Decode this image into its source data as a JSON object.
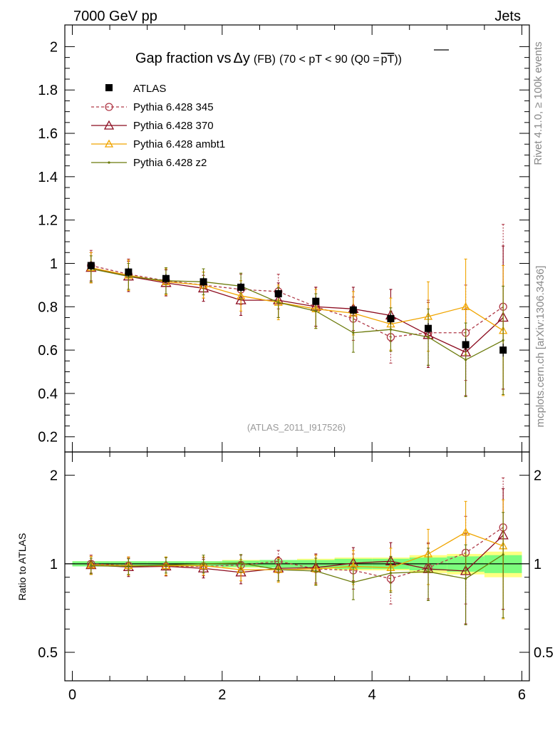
{
  "header": {
    "left": "7000 GeV pp",
    "right": "Jets"
  },
  "side_labels": {
    "rivet": "Rivet 4.1.0, ≥ 100k events",
    "mcplots": "mcplots.cern.ch [arXiv:1306.3436]"
  },
  "colors": {
    "atlas": "#000000",
    "p345": "#b03a48",
    "p370": "#8b0a1e",
    "ambt1": "#f0a500",
    "z2": "#6b7a0a",
    "band_inner": "#7cfc7c",
    "band_outer": "#ffff80"
  },
  "chart_data": [
    {
      "type": "scatter",
      "panel": "main",
      "title_parts": {
        "t1": "Gap fraction vs",
        "t2": "Δy",
        "t3": "(FB)",
        "t4": "(70 < pT <  90 (Q0 =",
        "t5": "pT",
        "t6": "))"
      },
      "watermark": "(ATLAS_2011_I917526)",
      "xlim": [
        -0.1,
        6.1
      ],
      "ylim": [
        0.13,
        2.1
      ],
      "yticks": [
        0.2,
        0.4,
        0.6,
        0.8,
        1,
        1.2,
        1.4,
        1.6,
        1.8,
        2
      ],
      "ytick_labels": [
        "0.2",
        "0.4",
        "0.6",
        "0.8",
        "1",
        "1.2",
        "1.4",
        "1.6",
        "1.8",
        "2"
      ],
      "x": [
        0.25,
        0.75,
        1.25,
        1.75,
        2.25,
        2.75,
        3.25,
        3.75,
        4.25,
        4.75,
        5.25,
        5.75
      ],
      "legend": [
        "ATLAS",
        "Pythia 6.428 345",
        "Pythia 6.428 370",
        "Pythia 6.428 ambt1",
        "Pythia 6.428 z2"
      ],
      "series": [
        {
          "name": "ATLAS",
          "key": "atlas",
          "values": [
            0.99,
            0.96,
            0.93,
            0.915,
            0.89,
            0.86,
            0.825,
            0.785,
            0.745,
            0.7,
            0.625,
            0.6
          ],
          "errors": [
            0.02,
            0.02,
            0.02,
            0.02,
            0.02,
            0.02,
            0.02,
            0.02,
            0.025,
            0.025,
            0.03,
            0.03
          ]
        },
        {
          "name": "Pythia 6.428 345",
          "key": "p345",
          "values": [
            0.99,
            0.95,
            0.92,
            0.9,
            0.88,
            0.87,
            0.8,
            0.745,
            0.66,
            0.68,
            0.68,
            0.8
          ],
          "errors": [
            0.07,
            0.07,
            0.06,
            0.06,
            0.07,
            0.08,
            0.09,
            0.1,
            0.12,
            0.15,
            0.22,
            0.38
          ]
        },
        {
          "name": "Pythia 6.428 370",
          "key": "p370",
          "values": [
            0.98,
            0.94,
            0.91,
            0.885,
            0.83,
            0.83,
            0.8,
            0.79,
            0.76,
            0.67,
            0.59,
            0.75
          ],
          "errors": [
            0.07,
            0.07,
            0.06,
            0.06,
            0.07,
            0.08,
            0.09,
            0.1,
            0.12,
            0.15,
            0.2,
            0.33
          ]
        },
        {
          "name": "Pythia 6.428 ambt1",
          "key": "ambt1",
          "values": [
            0.98,
            0.945,
            0.915,
            0.9,
            0.85,
            0.82,
            0.79,
            0.77,
            0.72,
            0.755,
            0.8,
            0.69
          ],
          "errors": [
            0.07,
            0.07,
            0.06,
            0.06,
            0.07,
            0.08,
            0.09,
            0.1,
            0.12,
            0.16,
            0.22,
            0.3
          ]
        },
        {
          "name": "Pythia 6.428 z2",
          "key": "z2",
          "values": [
            0.975,
            0.94,
            0.92,
            0.915,
            0.895,
            0.82,
            0.78,
            0.68,
            0.695,
            0.66,
            0.555,
            0.645
          ],
          "errors": [
            0.06,
            0.06,
            0.06,
            0.06,
            0.06,
            0.07,
            0.08,
            0.09,
            0.1,
            0.13,
            0.17,
            0.25
          ]
        }
      ]
    },
    {
      "type": "scatter",
      "panel": "ratio",
      "ylabel": "Ratio to ATLAS",
      "xlim": [
        -0.1,
        6.1
      ],
      "ylim": [
        0.4,
        2.4
      ],
      "yscale": "log",
      "yticks": [
        0.5,
        1,
        2
      ],
      "ytick_labels": [
        "0.5",
        "1",
        "2"
      ],
      "xticks": [
        0,
        2,
        4,
        6
      ],
      "xtick_labels": [
        "0",
        "2",
        "4",
        "6"
      ],
      "x": [
        0.25,
        0.75,
        1.25,
        1.75,
        2.25,
        2.75,
        3.25,
        3.75,
        4.25,
        4.75,
        5.25,
        5.75
      ],
      "band_inner": [
        0.02,
        0.02,
        0.02,
        0.02,
        0.025,
        0.03,
        0.03,
        0.04,
        0.04,
        0.05,
        0.06,
        0.07
      ],
      "band_outer": [
        0.02,
        0.02,
        0.02,
        0.02,
        0.03,
        0.03,
        0.04,
        0.05,
        0.05,
        0.07,
        0.08,
        0.1
      ],
      "series": [
        {
          "name": "Pythia 6.428 345",
          "key": "p345",
          "values": [
            1.0,
            0.985,
            0.98,
            0.98,
            0.99,
            1.02,
            0.96,
            0.95,
            0.89,
            0.97,
            1.09,
            1.33
          ],
          "errors": [
            0.07,
            0.07,
            0.07,
            0.07,
            0.08,
            0.09,
            0.11,
            0.13,
            0.16,
            0.21,
            0.36,
            0.63
          ]
        },
        {
          "name": "Pythia 6.428 370",
          "key": "p370",
          "values": [
            0.99,
            0.975,
            0.98,
            0.965,
            0.935,
            0.965,
            0.97,
            1.005,
            1.02,
            0.96,
            0.945,
            1.25
          ],
          "errors": [
            0.07,
            0.07,
            0.07,
            0.07,
            0.08,
            0.09,
            0.11,
            0.13,
            0.16,
            0.21,
            0.32,
            0.55
          ]
        },
        {
          "name": "Pythia 6.428 ambt1",
          "key": "ambt1",
          "values": [
            0.99,
            0.985,
            0.985,
            0.985,
            0.955,
            0.955,
            0.96,
            0.98,
            0.97,
            1.08,
            1.28,
            1.15
          ],
          "errors": [
            0.07,
            0.07,
            0.07,
            0.07,
            0.08,
            0.09,
            0.11,
            0.13,
            0.16,
            0.23,
            0.35,
            0.5
          ]
        },
        {
          "name": "Pythia 6.428 z2",
          "key": "z2",
          "values": [
            0.985,
            0.98,
            0.99,
            1.0,
            1.005,
            0.955,
            0.945,
            0.865,
            0.93,
            0.94,
            0.89,
            1.075
          ],
          "errors": [
            0.06,
            0.06,
            0.06,
            0.07,
            0.07,
            0.08,
            0.1,
            0.11,
            0.13,
            0.19,
            0.27,
            0.42
          ]
        }
      ]
    }
  ]
}
